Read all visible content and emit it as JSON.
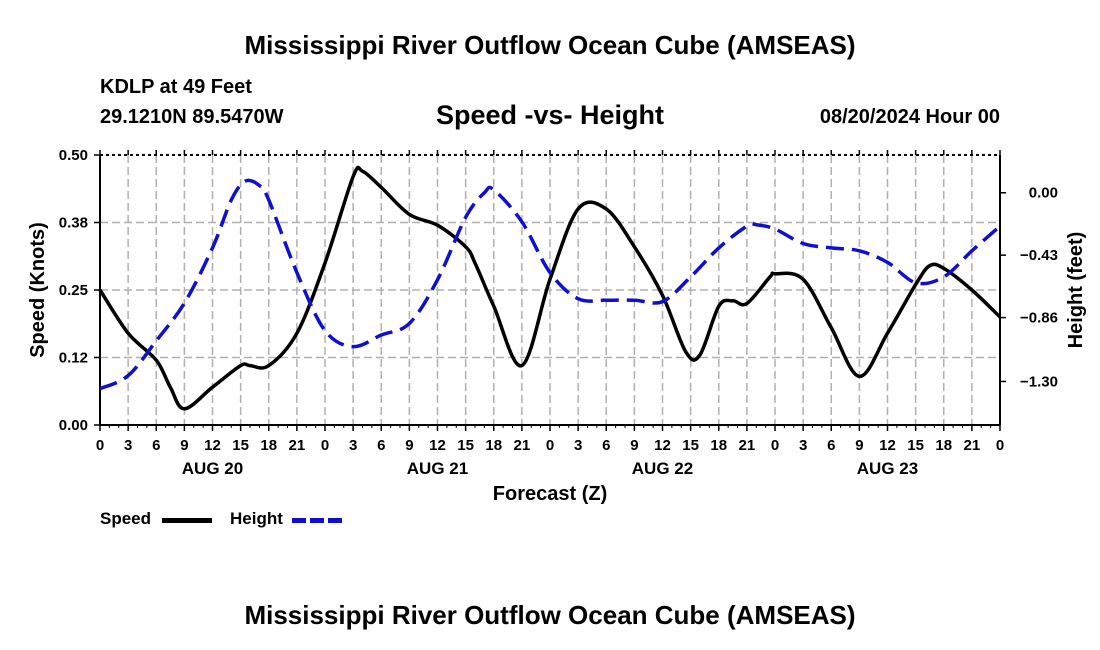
{
  "header": {
    "title": "Mississippi River Outflow Ocean Cube (AMSEAS)",
    "station": "KDLP at 49 Feet",
    "coords": "29.1210N  89.5470W",
    "subtitle": "Speed -vs- Height",
    "datetime": "08/20/2024 Hour 00"
  },
  "footer": {
    "title": "Mississippi River Outflow Ocean Cube (AMSEAS)"
  },
  "legend": {
    "speed_label": "Speed",
    "height_label": "Height"
  },
  "colors": {
    "speed": "#000000",
    "height": "#1010cc",
    "grid": "#b0b0b0"
  },
  "chart_data": {
    "type": "line",
    "title": "Speed -vs- Height",
    "xlabel": "Forecast (Z)",
    "ylabel": "Speed (Knots)",
    "y2label": "Height (feet)",
    "x_ticks_hours": [
      0,
      3,
      6,
      9,
      12,
      15,
      18,
      21,
      24,
      27,
      30,
      33,
      36,
      39,
      42,
      45,
      48,
      51,
      54,
      57,
      60,
      63,
      66,
      69,
      72,
      75,
      78,
      81,
      84,
      87,
      90,
      93,
      96
    ],
    "x_tick_labels": [
      "0",
      "3",
      "6",
      "9",
      "12",
      "15",
      "18",
      "21",
      "0",
      "3",
      "6",
      "9",
      "12",
      "15",
      "18",
      "21",
      "0",
      "3",
      "6",
      "9",
      "12",
      "15",
      "18",
      "21",
      "0",
      "3",
      "6",
      "9",
      "12",
      "15",
      "18",
      "21",
      "0"
    ],
    "day_labels": [
      {
        "label": "AUG 20",
        "hour": 12
      },
      {
        "label": "AUG 21",
        "hour": 36
      },
      {
        "label": "AUG 22",
        "hour": 60
      },
      {
        "label": "AUG 23",
        "hour": 84
      }
    ],
    "xlim": [
      0,
      96
    ],
    "ylim": [
      0,
      0.5
    ],
    "y_ticks": [
      0.0,
      0.125,
      0.25,
      0.375,
      0.5
    ],
    "y_tick_labels": [
      "0.00",
      "0.12",
      "0.25",
      "0.38",
      "0.50"
    ],
    "y2lim": [
      -1.6,
      0.26
    ],
    "y2_ticks": [
      0.0,
      -0.43,
      -0.86,
      -1.3
    ],
    "y2_tick_labels": [
      "0.00",
      "−0.43",
      "−0.86",
      "−1.30"
    ],
    "series": [
      {
        "name": "Speed",
        "axis": "left",
        "style": "solid",
        "x": [
          0,
          3,
          6,
          7.5,
          9,
          12,
          15,
          16,
          18,
          21,
          24,
          27,
          28,
          30,
          33,
          36,
          39,
          40,
          42,
          45,
          48,
          51,
          54,
          57,
          60,
          62.5,
          64,
          66,
          67.5,
          69,
          71.5,
          72,
          75,
          78,
          81,
          84,
          87,
          88.5,
          90,
          93,
          96
        ],
        "y": [
          0.25,
          0.17,
          0.12,
          0.07,
          0.03,
          0.07,
          0.11,
          0.11,
          0.11,
          0.17,
          0.3,
          0.46,
          0.47,
          0.44,
          0.39,
          0.37,
          0.33,
          0.3,
          0.22,
          0.11,
          0.27,
          0.4,
          0.4,
          0.33,
          0.24,
          0.135,
          0.13,
          0.22,
          0.23,
          0.225,
          0.275,
          0.28,
          0.27,
          0.18,
          0.09,
          0.17,
          0.26,
          0.295,
          0.29,
          0.25,
          0.2
        ]
      },
      {
        "name": "Height",
        "axis": "right",
        "style": "dashed",
        "x": [
          0,
          3,
          6,
          9,
          12,
          14,
          15.5,
          17,
          18,
          21,
          24,
          27,
          30,
          33,
          36,
          39,
          41,
          42,
          45,
          48,
          51,
          54,
          57,
          60,
          63,
          66,
          69,
          70,
          72,
          75,
          78,
          81,
          84,
          87,
          90,
          93,
          96
        ],
        "y": [
          -1.35,
          -1.26,
          -1.02,
          -0.76,
          -0.38,
          -0.05,
          0.08,
          0.05,
          -0.05,
          -0.55,
          -0.95,
          -1.06,
          -0.98,
          -0.9,
          -0.6,
          -0.17,
          0.0,
          0.02,
          -0.2,
          -0.55,
          -0.73,
          -0.74,
          -0.74,
          -0.75,
          -0.58,
          -0.38,
          -0.23,
          -0.22,
          -0.25,
          -0.35,
          -0.38,
          -0.4,
          -0.48,
          -0.62,
          -0.58,
          -0.4,
          -0.23
        ]
      }
    ]
  }
}
